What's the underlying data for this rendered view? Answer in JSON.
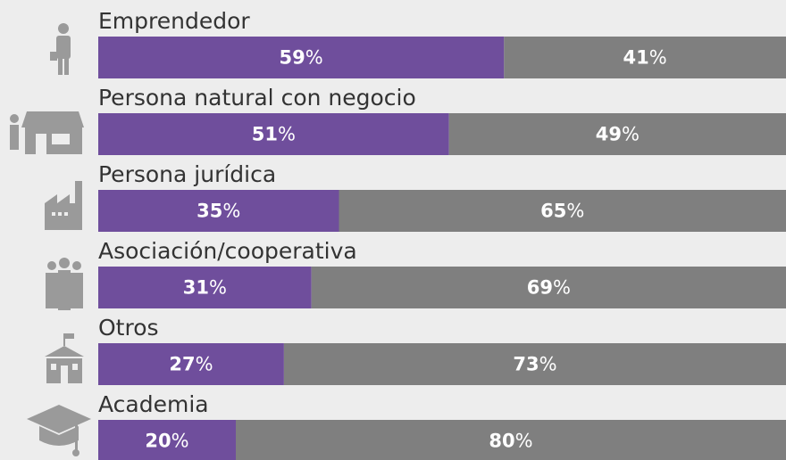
{
  "chart_data": {
    "type": "bar",
    "orientation": "horizontal",
    "stacked": true,
    "categories": [
      "Emprendedor",
      "Persona natural con negocio",
      "Persona jurídica",
      "Asociación/cooperativa",
      "Otros",
      "Academia"
    ],
    "series": [
      {
        "color": "#6f4e9c",
        "values": [
          59,
          51,
          35,
          31,
          27,
          20
        ],
        "value_labels": [
          "59%",
          "51%",
          "35%",
          "31%",
          "27%",
          "20%"
        ]
      },
      {
        "color": "#7f7f7f",
        "values": [
          41,
          49,
          65,
          69,
          73,
          80
        ],
        "value_labels": [
          "41%",
          "49%",
          "65%",
          "69%",
          "73%",
          "80%"
        ]
      }
    ],
    "xlim": [
      0,
      100
    ]
  }
}
